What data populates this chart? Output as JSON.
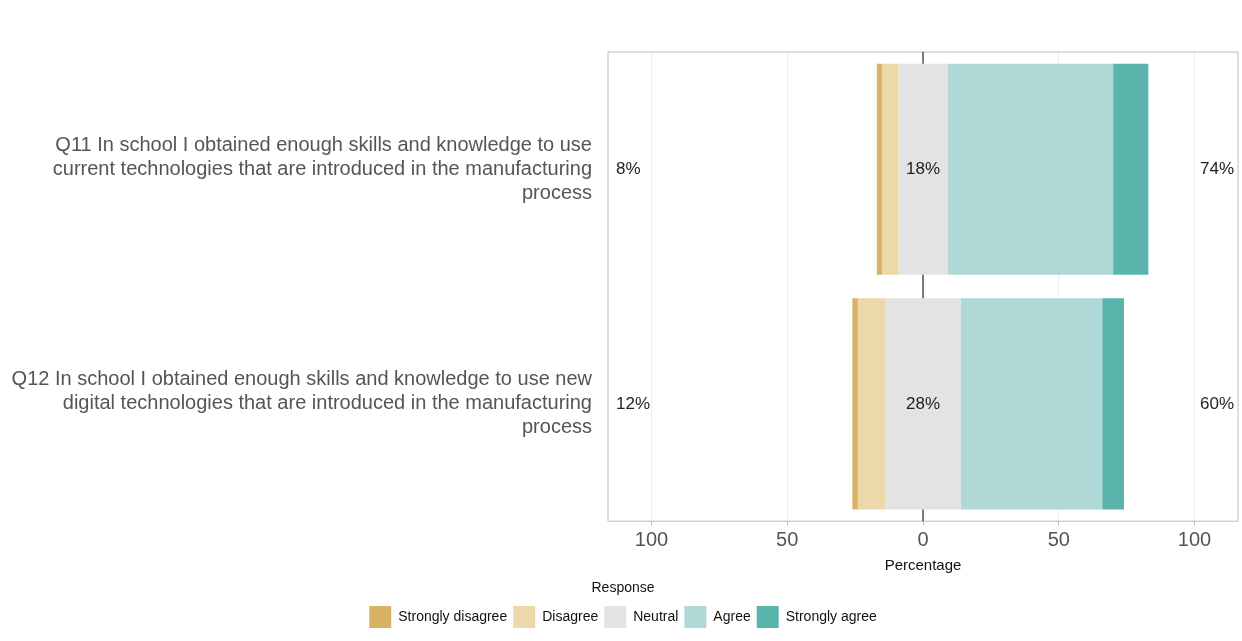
{
  "chart_data": {
    "type": "bar",
    "orientation": "horizontal",
    "categories": [
      "Q11 In school I obtained enough skills and knowledge to use current technologies that are introduced in the manufacturing process",
      "Q12 In school I obtained enough skills and knowledge to use new digital technologies that are introduced in the manufacturing process"
    ],
    "series": [
      {
        "name": "Strongly disagree",
        "color": "#d8b365",
        "values": [
          2,
          2
        ],
        "base": [
          -17,
          -26
        ]
      },
      {
        "name": "Disagree",
        "color": "#ecd9aa",
        "values": [
          6,
          10
        ],
        "base": [
          -15,
          -24
        ]
      },
      {
        "name": "Neutral",
        "color": "#e3e3e3",
        "values": [
          18,
          28
        ],
        "base": [
          -9,
          -14
        ]
      },
      {
        "name": "Agree",
        "color": "#aed9d6",
        "values": [
          61,
          52
        ],
        "base": [
          9,
          14
        ]
      },
      {
        "name": "Strongly agree",
        "color": "#5ab4ac",
        "values": [
          13,
          8
        ],
        "base": [
          70,
          66
        ]
      }
    ],
    "xlabel": "Percentage",
    "legend_title": "Response",
    "legend": "bottom",
    "grid": "x",
    "xlim": [
      -116,
      116
    ],
    "xticks": [
      {
        "value": -100,
        "label": "100"
      },
      {
        "value": -50,
        "label": "50"
      },
      0,
      50,
      100
    ],
    "ref_lines": [
      {
        "axis": "x",
        "value": 0,
        "color": "#000000"
      }
    ],
    "annotations": [
      "8%",
      {
        "text": "18%",
        "x": 0,
        "y": "Q11 In school I obtained enough skills and knowledge to use current technologies that are introduced in the manufacturing process"
      },
      "74%",
      "12%",
      {
        "text": "28%",
        "x": 0,
        "y": "Q12 In school I obtained enough skills and knowledge to use new digital technologies that are introduced in the manufacturing process"
      },
      "60%"
    ]
  }
}
